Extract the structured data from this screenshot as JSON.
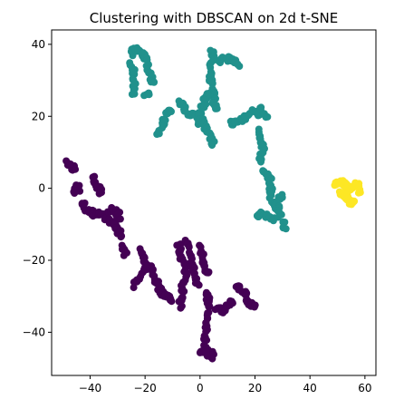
{
  "chart_data": {
    "type": "scatter",
    "title": "Clustering with DBSCAN on 2d t-SNE",
    "xlabel": "",
    "ylabel": "",
    "xlim": [
      -54,
      64
    ],
    "ylim": [
      -52,
      44
    ],
    "xticks": [
      -40,
      -20,
      0,
      20,
      40,
      60
    ],
    "yticks": [
      -40,
      -20,
      0,
      20,
      40
    ],
    "grid": false,
    "legend": "none",
    "marker_size": 7,
    "series": [
      {
        "color": "#440154",
        "strokes": [
          [
            [
              -48,
              7
            ],
            [
              -47,
              6
            ],
            [
              -46,
              5
            ],
            [
              -47,
              7
            ]
          ],
          [
            [
              -46,
              -1
            ],
            [
              -44,
              0
            ],
            [
              -45,
              1
            ],
            [
              -46,
              -1
            ]
          ],
          [
            [
              -43,
              -4
            ],
            [
              -41,
              -6
            ],
            [
              -39,
              -7
            ],
            [
              -37,
              -7
            ],
            [
              -35,
              -8
            ],
            [
              -33,
              -9
            ],
            [
              -31,
              -10
            ],
            [
              -30,
              -12
            ],
            [
              -29,
              -13
            ]
          ],
          [
            [
              -39,
              3
            ],
            [
              -38,
              1
            ],
            [
              -37,
              0
            ],
            [
              -36,
              -1
            ]
          ],
          [
            [
              -33,
              -6
            ],
            [
              -31,
              -6
            ],
            [
              -29,
              -8
            ]
          ],
          [
            [
              -28,
              -16
            ],
            [
              -27,
              -18
            ]
          ],
          [
            [
              -24,
              -27
            ],
            [
              -22,
              -25
            ],
            [
              -20,
              -22
            ],
            [
              -18,
              -22
            ],
            [
              -17,
              -25
            ],
            [
              -15,
              -27
            ],
            [
              -14,
              -29
            ],
            [
              -12,
              -30
            ],
            [
              -10,
              -31
            ]
          ],
          [
            [
              -22,
              -17
            ],
            [
              -21,
              -19
            ],
            [
              -20,
              -21
            ]
          ],
          [
            [
              -8,
              -15
            ],
            [
              -7,
              -18
            ],
            [
              -6,
              -21
            ],
            [
              -5,
              -24
            ],
            [
              -6,
              -27
            ],
            [
              -7,
              -30
            ],
            [
              -7,
              -33
            ]
          ],
          [
            [
              -5,
              -15
            ],
            [
              -4,
              -18
            ],
            [
              -3,
              -21
            ],
            [
              -2,
              -24
            ],
            [
              -1,
              -27
            ]
          ],
          [
            [
              0,
              -16
            ],
            [
              1,
              -19
            ],
            [
              2,
              -22
            ],
            [
              3,
              -24
            ]
          ],
          [
            [
              2,
              -29
            ],
            [
              3,
              -31
            ],
            [
              3,
              -34
            ],
            [
              2,
              -37
            ],
            [
              2,
              -40
            ],
            [
              2,
              -44
            ],
            [
              4,
              -46
            ],
            [
              5,
              -47
            ]
          ],
          [
            [
              0,
              -45
            ],
            [
              2,
              -46
            ]
          ],
          [
            [
              6,
              -33
            ],
            [
              8,
              -34
            ],
            [
              10,
              -33
            ],
            [
              12,
              -31
            ]
          ],
          [
            [
              13,
              -27
            ],
            [
              15,
              -28
            ],
            [
              17,
              -30
            ],
            [
              18,
              -32
            ],
            [
              20,
              -33
            ]
          ]
        ]
      },
      {
        "color": "#21918c",
        "strokes": [
          [
            [
              -25,
              37
            ],
            [
              -24,
              39
            ],
            [
              -22,
              38
            ],
            [
              -20,
              36
            ]
          ],
          [
            [
              -25,
              35
            ],
            [
              -24,
              32
            ],
            [
              -24,
              29
            ],
            [
              -24,
              26
            ]
          ],
          [
            [
              -20,
              37
            ],
            [
              -19,
              34
            ],
            [
              -18,
              31
            ],
            [
              -17,
              29
            ]
          ],
          [
            [
              -20,
              26
            ],
            [
              -18,
              26
            ]
          ],
          [
            [
              -15,
              15
            ],
            [
              -14,
              17
            ],
            [
              -13,
              19
            ],
            [
              -12,
              21
            ],
            [
              -11,
              22
            ]
          ],
          [
            [
              -7,
              24
            ],
            [
              -6,
              23
            ],
            [
              -5,
              21
            ]
          ],
          [
            [
              -4,
              21
            ],
            [
              -2,
              20
            ],
            [
              0,
              21
            ],
            [
              1,
              23
            ],
            [
              2,
              25
            ],
            [
              3,
              26
            ]
          ],
          [
            [
              -1,
              18
            ],
            [
              0,
              19
            ]
          ],
          [
            [
              0,
              20
            ],
            [
              2,
              17
            ],
            [
              3,
              16
            ],
            [
              4,
              14
            ],
            [
              5,
              12
            ]
          ],
          [
            [
              4,
              38
            ],
            [
              5,
              36
            ],
            [
              4,
              34
            ],
            [
              4,
              31
            ],
            [
              4,
              28
            ],
            [
              5,
              26
            ],
            [
              5,
              24
            ],
            [
              6,
              22
            ]
          ],
          [
            [
              7,
              35
            ],
            [
              9,
              36
            ],
            [
              12,
              36
            ],
            [
              14,
              34
            ]
          ],
          [
            [
              11,
              18
            ],
            [
              13,
              18
            ],
            [
              15,
              19
            ],
            [
              17,
              20
            ],
            [
              20,
              22
            ],
            [
              21,
              20
            ]
          ],
          [
            [
              22,
              22
            ],
            [
              24,
              20
            ]
          ],
          [
            [
              21,
              16
            ],
            [
              22,
              13
            ],
            [
              23,
              10
            ],
            [
              22,
              8
            ]
          ],
          [
            [
              23,
              5
            ],
            [
              25,
              3
            ],
            [
              26,
              0
            ],
            [
              25,
              -2
            ]
          ],
          [
            [
              21,
              -8
            ],
            [
              23,
              -7
            ],
            [
              25,
              -8
            ],
            [
              27,
              -9
            ]
          ],
          [
            [
              26,
              -4
            ],
            [
              28,
              -5
            ],
            [
              29,
              -8
            ]
          ],
          [
            [
              30,
              -9
            ],
            [
              31,
              -11
            ]
          ],
          [
            [
              29,
              -3
            ],
            [
              30,
              -2
            ]
          ]
        ]
      },
      {
        "color": "#fde725",
        "strokes": [
          [
            [
              49,
              1
            ],
            [
              51,
              2
            ],
            [
              53,
              1
            ],
            [
              55,
              0
            ],
            [
              57,
              1
            ],
            [
              58,
              -1
            ]
          ],
          [
            [
              51,
              -1
            ],
            [
              53,
              -2
            ],
            [
              54,
              -3
            ],
            [
              55,
              -4
            ],
            [
              56,
              -4
            ]
          ]
        ]
      }
    ]
  }
}
